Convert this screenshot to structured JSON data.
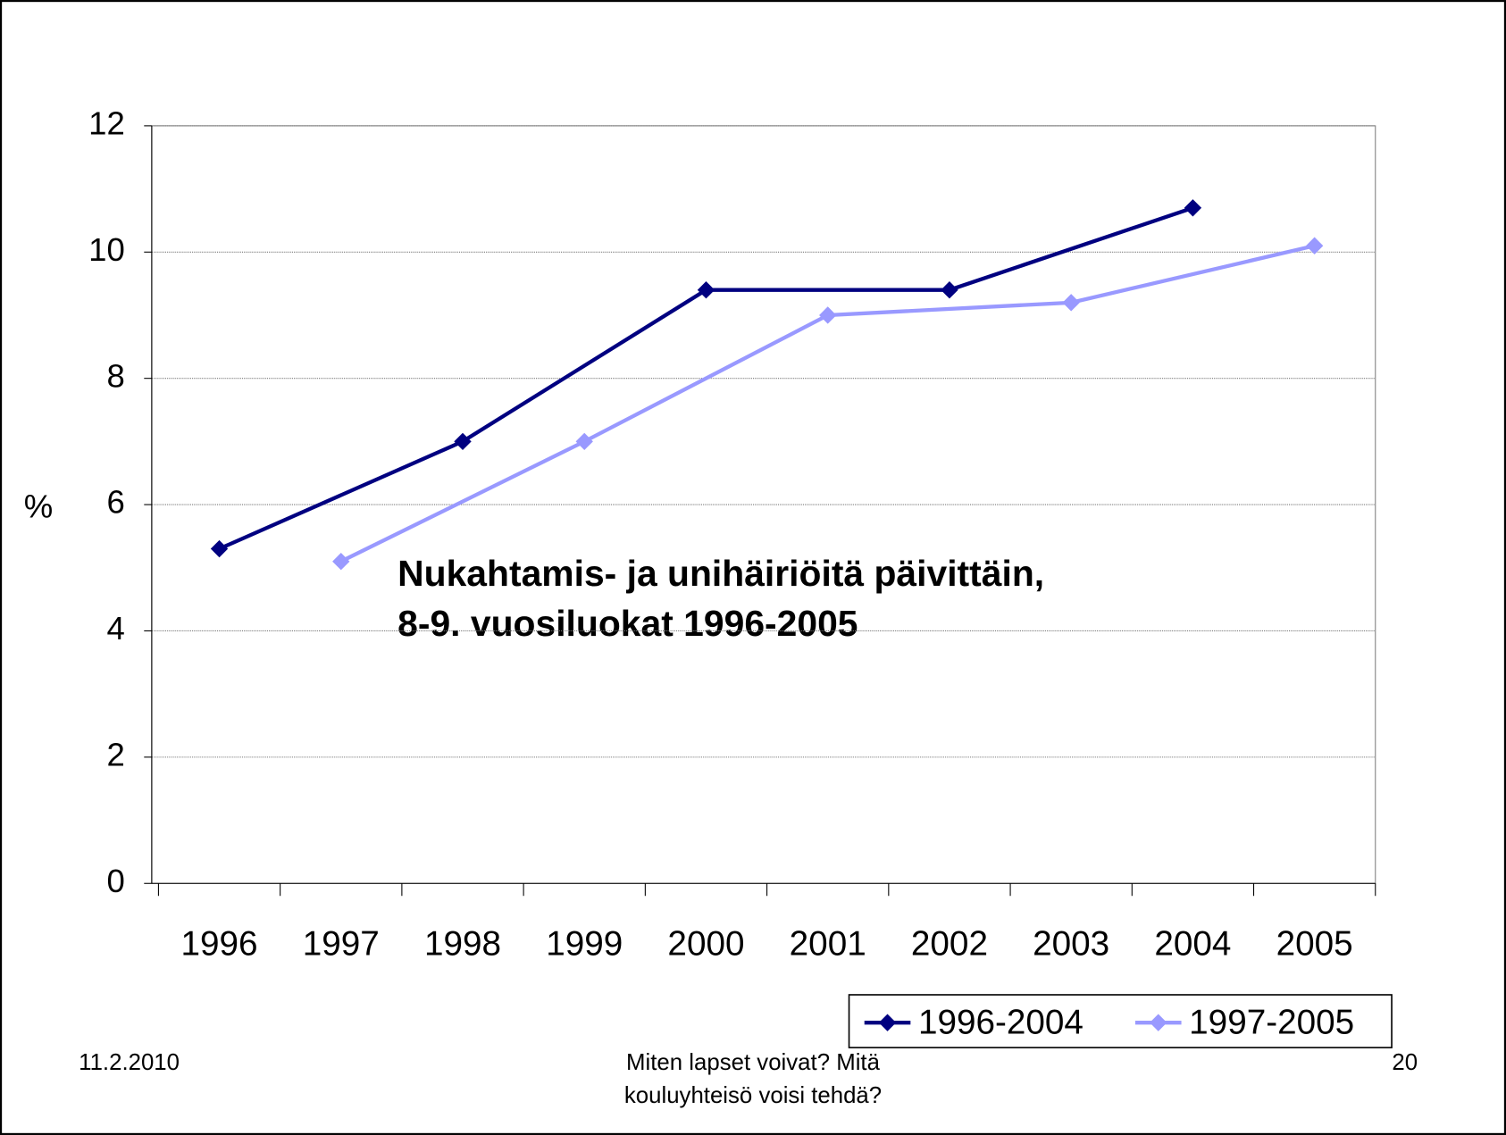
{
  "chart_data": {
    "type": "line",
    "title": [
      "Nukahtamis- ja unihäiriöitä päivittäin,",
      "8-9. vuosiluokat 1996-2005"
    ],
    "y_label": "%",
    "x": [
      1996,
      1997,
      1998,
      1999,
      2000,
      2001,
      2002,
      2003,
      2004,
      2005
    ],
    "xlim": [
      1995.5,
      2005.5
    ],
    "series": [
      {
        "name": "1996-2004",
        "color": "#000080",
        "x": [
          1996,
          1998,
          2000,
          2002,
          2004
        ],
        "values": [
          5.3,
          7.0,
          9.4,
          9.4,
          10.7
        ]
      },
      {
        "name": "1997-2005",
        "color": "#9999ff",
        "x": [
          1997,
          1999,
          2001,
          2003,
          2005
        ],
        "values": [
          5.1,
          7.0,
          9.0,
          9.2,
          10.1
        ]
      }
    ],
    "ylim": [
      0,
      12
    ],
    "yticks": [
      0,
      2,
      4,
      6,
      8,
      10,
      12
    ],
    "grid": true,
    "legend": "bottom-right"
  },
  "footer": {
    "date": "11.2.2010",
    "text": [
      "Miten lapset voivat? Mitä",
      "kouluyhteisö voisi tehdä?"
    ],
    "page": "20"
  }
}
